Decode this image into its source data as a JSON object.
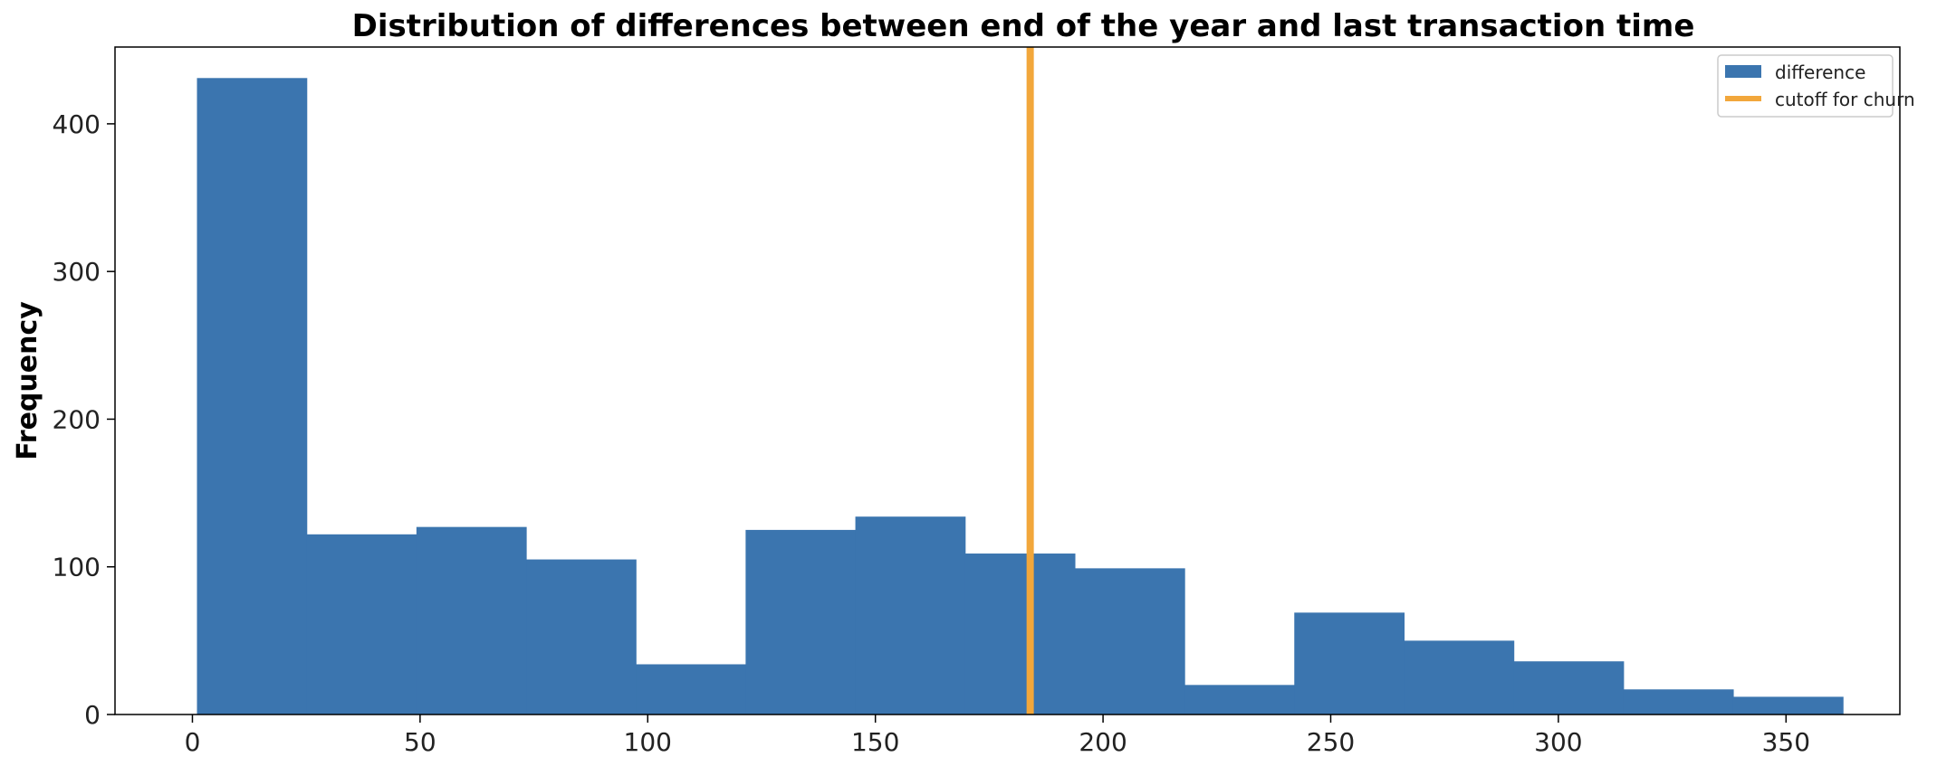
{
  "chart_data": {
    "type": "bar",
    "title": "Distribution of differences between end of the year and last transaction time",
    "xlabel": "",
    "ylabel": "Frequency",
    "xlim": [
      -17,
      375
    ],
    "ylim": [
      0,
      452
    ],
    "xticks": [
      0,
      50,
      100,
      150,
      200,
      250,
      300,
      350
    ],
    "yticks": [
      0,
      100,
      200,
      300,
      400
    ],
    "grid": false,
    "legend_position": "top-right",
    "series": [
      {
        "name": "difference",
        "type": "histogram",
        "color": "#3b75af",
        "bin_edges": [
          1,
          25.1,
          49.2,
          73.3,
          97.4,
          121.5,
          145.6,
          169.7,
          193.8,
          217.9,
          242.0,
          266.1,
          290.2,
          314.3,
          338.4,
          362.5
        ],
        "values": [
          431,
          122,
          127,
          105,
          34,
          125,
          134,
          109,
          99,
          20,
          69,
          50,
          36,
          17,
          12
        ]
      },
      {
        "name": "cutoff for churn",
        "type": "vline",
        "color": "#f2a73b",
        "x": 184
      }
    ]
  }
}
